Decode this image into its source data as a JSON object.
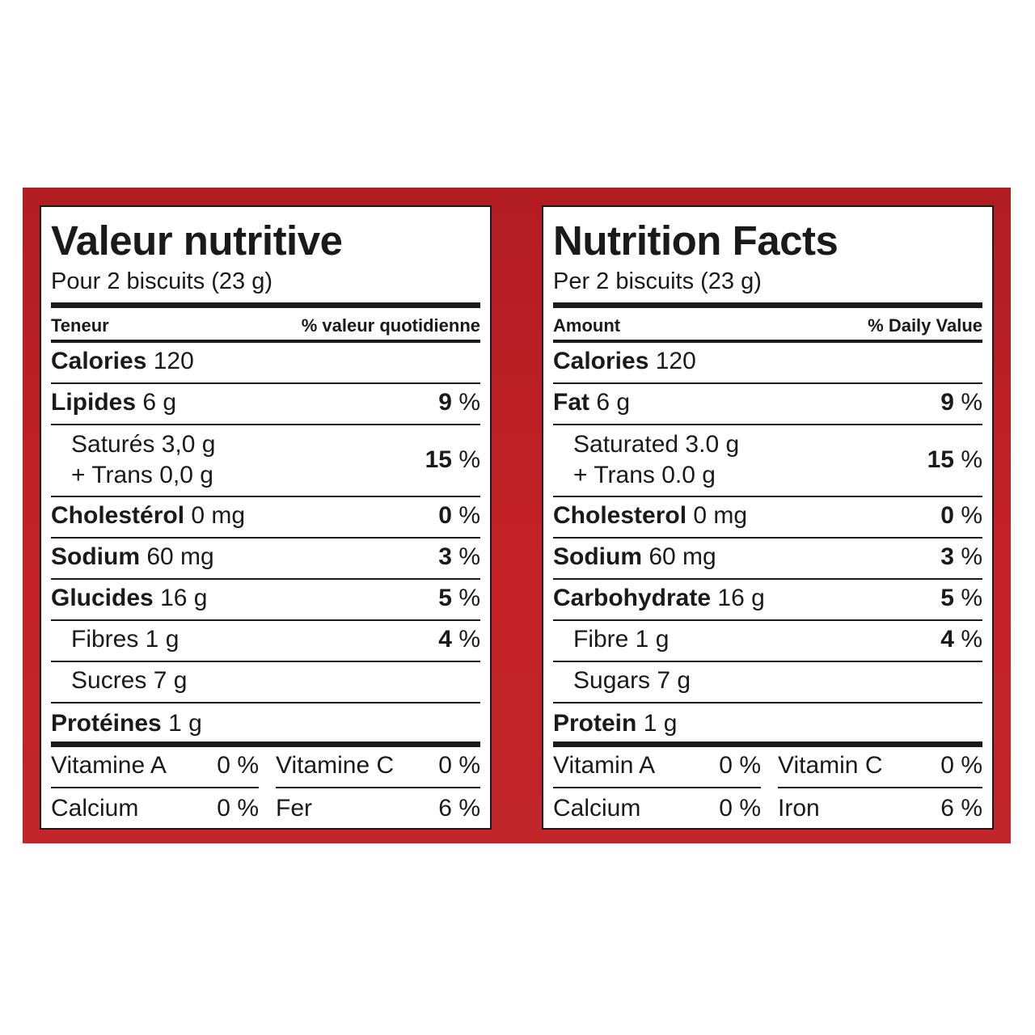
{
  "fr": {
    "title": "Valeur nutritive",
    "serving": "Pour 2 biscuits (23 g)",
    "header_left": "Teneur",
    "header_right": "% valeur quotidienne",
    "calories_label": "Calories",
    "calories_value": "120",
    "fat_label": "Lipides",
    "fat_amount": "6 g",
    "fat_dv": "9",
    "saturated": "Saturés 3,0 g",
    "trans": "+ Trans 0,0 g",
    "sat_dv": "15",
    "chol_label": "Cholestérol",
    "chol_amount": "0 mg",
    "chol_dv": "0",
    "sodium_label": "Sodium",
    "sodium_amount": "60 mg",
    "sodium_dv": "3",
    "carb_label": "Glucides",
    "carb_amount": "16 g",
    "carb_dv": "5",
    "fibre": "Fibres 1 g",
    "fibre_dv": "4",
    "sugars": "Sucres 7 g",
    "protein_label": "Protéines",
    "protein_amount": "1 g",
    "vit_a_label": "Vitamine A",
    "vit_a_value": "0 %",
    "vit_c_label": "Vitamine C",
    "vit_c_value": "0 %",
    "calcium_label": "Calcium",
    "calcium_value": "0 %",
    "iron_label": "Fer",
    "iron_value": "6 %"
  },
  "en": {
    "title": "Nutrition Facts",
    "serving": "Per 2 biscuits (23 g)",
    "header_left": "Amount",
    "header_right": "% Daily Value",
    "calories_label": "Calories",
    "calories_value": "120",
    "fat_label": "Fat",
    "fat_amount": "6 g",
    "fat_dv": "9",
    "saturated": "Saturated 3.0 g",
    "trans": "+ Trans 0.0 g",
    "sat_dv": "15",
    "chol_label": "Cholesterol",
    "chol_amount": "0 mg",
    "chol_dv": "0",
    "sodium_label": "Sodium",
    "sodium_amount": "60 mg",
    "sodium_dv": "3",
    "carb_label": "Carbohydrate",
    "carb_amount": "16 g",
    "carb_dv": "5",
    "fibre": "Fibre 1 g",
    "fibre_dv": "4",
    "sugars": "Sugars 7 g",
    "protein_label": "Protein",
    "protein_amount": "1 g",
    "vit_a_label": "Vitamin A",
    "vit_a_value": "0 %",
    "vit_c_label": "Vitamin C",
    "vit_c_value": "0 %",
    "calcium_label": "Calcium",
    "calcium_value": "0 %",
    "iron_label": "Iron",
    "iron_value": "6 %"
  },
  "percent_sign": "%",
  "colors": {
    "band": "#c42226",
    "ink": "#1a1a1a",
    "panel": "#ffffff"
  }
}
